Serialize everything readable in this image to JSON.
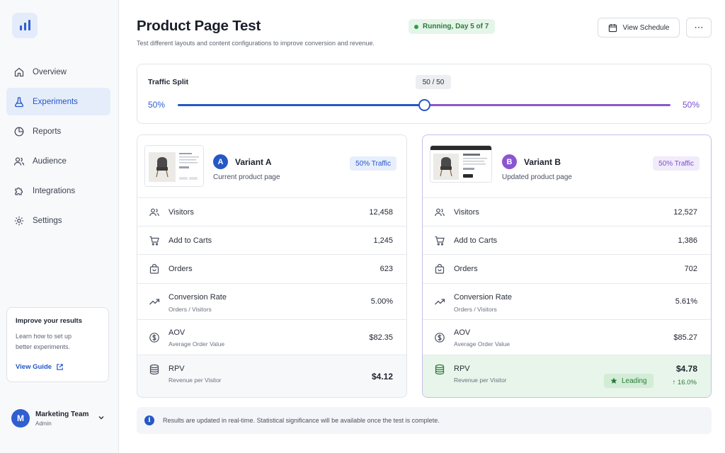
{
  "sidebar": {
    "items": [
      {
        "label": "Overview",
        "icon": "home-icon"
      },
      {
        "label": "Experiments",
        "icon": "flask-icon",
        "active": true
      },
      {
        "label": "Reports",
        "icon": "pie-chart-icon"
      },
      {
        "label": "Audience",
        "icon": "users-icon"
      },
      {
        "label": "Integrations",
        "icon": "puzzle-icon"
      },
      {
        "label": "Settings",
        "icon": "gear-icon"
      }
    ],
    "promo": {
      "title": "Improve your results",
      "text": "Learn how to set up better experiments.",
      "link": "View Guide"
    },
    "user": {
      "initial": "M",
      "name": "Marketing Team",
      "role": "Admin"
    }
  },
  "header": {
    "title": "Product Page Test",
    "subtitle": "Test different layouts and content configurations to improve conversion and revenue.",
    "status": "Running, Day 5 of 7",
    "schedule_button": "View Schedule",
    "more_button": "⋯"
  },
  "traffic_split": {
    "label": "Traffic Split",
    "bubble": "50 / 50",
    "left_label": "50%",
    "right_label": "50%",
    "split_a_fraction": 0.5
  },
  "variants": {
    "a": {
      "badge": "A",
      "name": "Variant A",
      "description": "Current product page",
      "traffic": "50% Traffic",
      "metrics": {
        "visitors": {
          "label": "Visitors",
          "value": "12,458"
        },
        "add_to_carts": {
          "label": "Add to Carts",
          "value": "1,245"
        },
        "orders": {
          "label": "Orders",
          "value": "623"
        },
        "conversion": {
          "label": "Conversion Rate",
          "sub": "Orders / Visitors",
          "value": "5.00%"
        },
        "aov": {
          "label": "AOV",
          "sub": "Average Order Value",
          "value": "$82.35"
        },
        "rpv": {
          "label": "RPV",
          "sub": "Revenue per Visitor",
          "value": "$4.12"
        }
      }
    },
    "b": {
      "badge": "B",
      "name": "Variant B",
      "description": "Updated product page",
      "traffic": "50% Traffic",
      "metrics": {
        "visitors": {
          "label": "Visitors",
          "value": "12,527"
        },
        "add_to_carts": {
          "label": "Add to Carts",
          "value": "1,386"
        },
        "orders": {
          "label": "Orders",
          "value": "702"
        },
        "conversion": {
          "label": "Conversion Rate",
          "sub": "Orders / Visitors",
          "value": "5.61%"
        },
        "aov": {
          "label": "AOV",
          "sub": "Average Order Value",
          "value": "$85.27"
        },
        "rpv": {
          "label": "RPV",
          "sub": "Revenue per Visitor",
          "value": "$4.78"
        }
      },
      "leading_label": "Leading",
      "lift": "↑ 16.0%"
    }
  },
  "info": {
    "icon": "i",
    "text": "Results are updated in real-time. Statistical significance will be available once the test is complete."
  },
  "colors": {
    "variant_a": "#2558c6",
    "variant_b": "#8a56d0",
    "success": "#2b7a3b"
  }
}
